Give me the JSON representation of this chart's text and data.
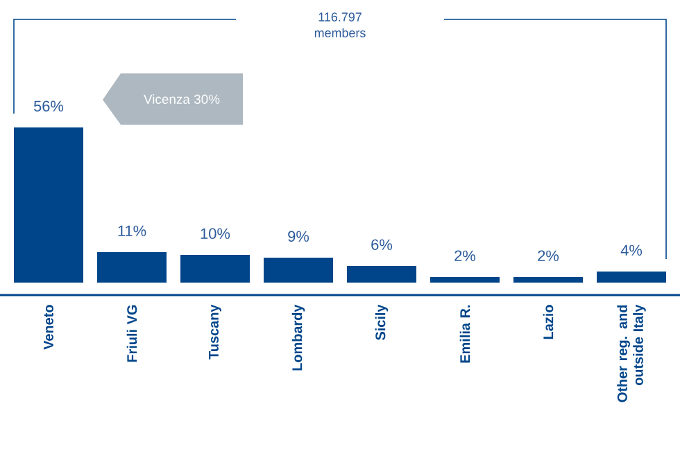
{
  "chart_data": {
    "type": "bar",
    "categories": [
      "Veneto",
      "Friuli VG",
      "Tuscany",
      "Lombardy",
      "Sicily",
      "Emilia R.",
      "Lazio",
      "Other reg. and outside Italy"
    ],
    "values": [
      56,
      11,
      10,
      9,
      6,
      2,
      2,
      4
    ],
    "value_labels": [
      "56%",
      "11%",
      "10%",
      "9%",
      "6%",
      "2%",
      "2%",
      "4%"
    ],
    "color": "#00458a",
    "annotations": [
      "116.797 members",
      "Vicenza 30%"
    ]
  }
}
